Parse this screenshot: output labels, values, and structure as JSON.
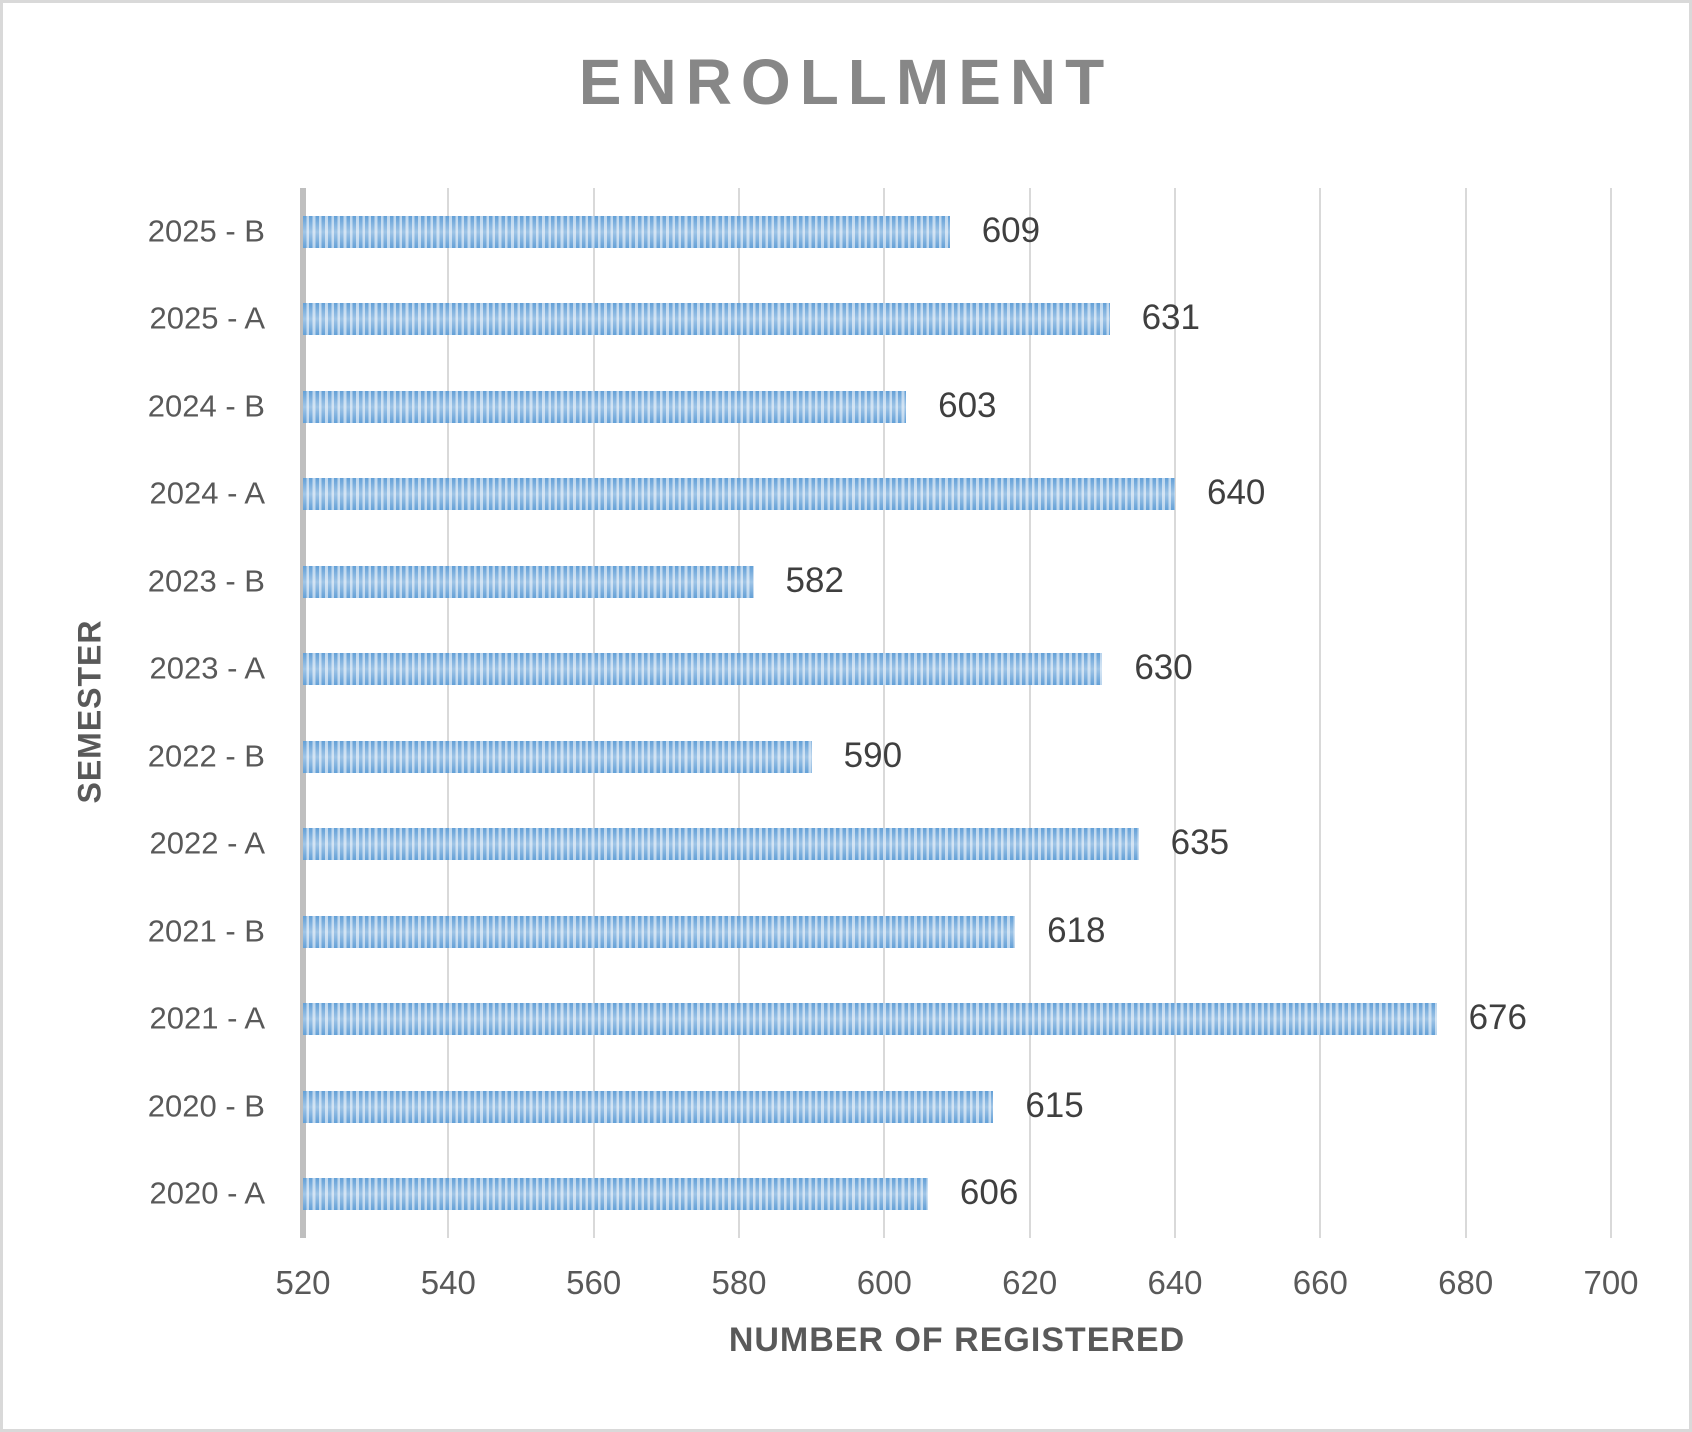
{
  "chart_data": {
    "type": "bar",
    "orientation": "horizontal",
    "title": "ENROLLMENT",
    "xlabel": "NUMBER OF REGISTERED",
    "ylabel": "SEMESTER",
    "categories": [
      "2025 - B",
      "2025 - A",
      "2024 - B",
      "2024 - A",
      "2023 - B",
      "2023 - A",
      "2022 - B",
      "2022 - A",
      "2021 - B",
      "2021 - A",
      "2020 - B",
      "2020 - A"
    ],
    "values": [
      609,
      631,
      603,
      640,
      582,
      630,
      590,
      635,
      618,
      676,
      615,
      606
    ],
    "xlim": [
      520,
      700
    ],
    "xticks": [
      520,
      540,
      560,
      580,
      600,
      620,
      640,
      660,
      680,
      700
    ],
    "grid": true,
    "data_labels": true,
    "legend": "none",
    "bar_pattern": "light-vertical-stripes"
  },
  "colors": {
    "bar_stripe_dark": "#5b9bd5",
    "bar_stripe_light": "#b6d2ec",
    "gridline": "#d9d9d9",
    "axis_line": "#bfbfbf",
    "title_text": "#878787",
    "axis_text": "#595959",
    "data_label_text": "#3f3f3f",
    "frame_border": "#d9d9d9",
    "background": "#ffffff"
  }
}
